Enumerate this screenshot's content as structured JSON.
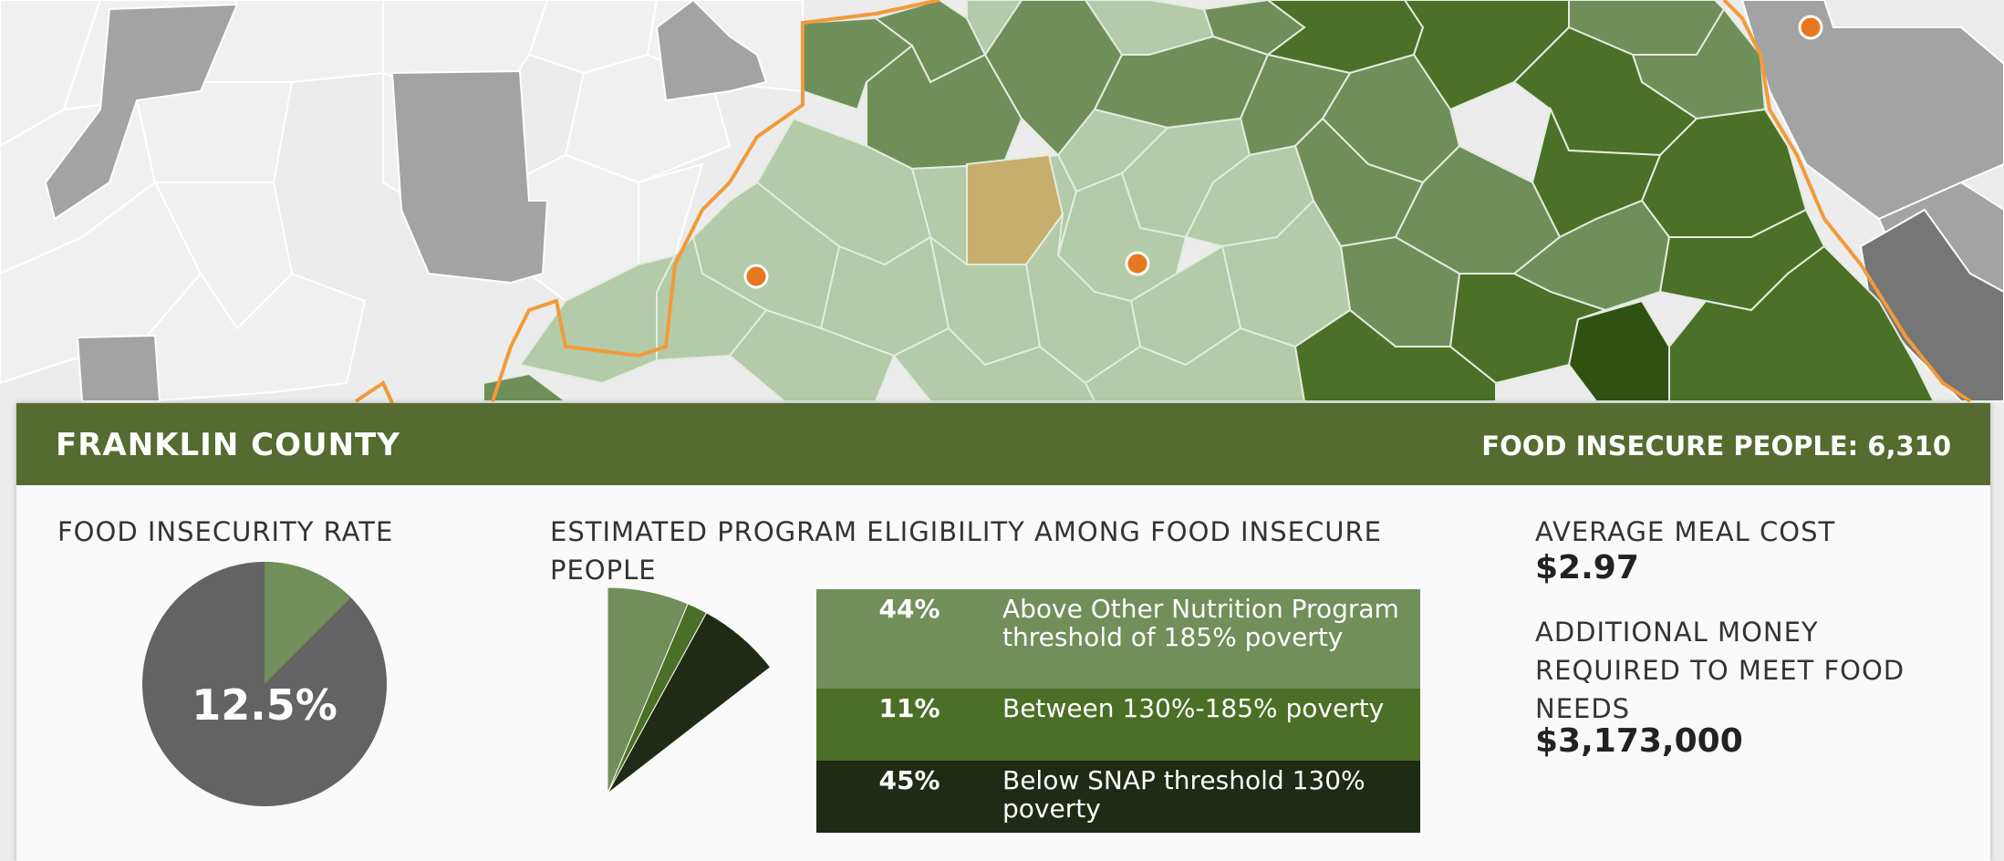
{
  "county": {
    "name": "FRANKLIN COUNTY",
    "food_insecure_label": "FOOD INSECURE PEOPLE:",
    "food_insecure_value": "6,310"
  },
  "rate": {
    "label": "FOOD INSECURITY RATE",
    "value_text": "12.5%",
    "value": 0.125,
    "color_insecure": "#708f5a",
    "color_rest": "#636363"
  },
  "eligibility": {
    "label": "ESTIMATED PROGRAM ELIGIBILITY AMONG FOOD INSECURE PEOPLE",
    "rows": [
      {
        "pct": "44%",
        "value": 44,
        "text": "Above Other Nutrition Program threshold of 185% poverty",
        "color": "#708f5a"
      },
      {
        "pct": "11%",
        "value": 11,
        "text": "Between 130%-185% poverty",
        "color": "#4a6f26"
      },
      {
        "pct": "45%",
        "value": 45,
        "text": "Below SNAP threshold 130% poverty",
        "color": "#1f2b14"
      }
    ]
  },
  "meal": {
    "label": "AVERAGE MEAL COST",
    "value": "$2.97"
  },
  "additional": {
    "label": "ADDITIONAL MONEY REQUIRED TO MEET FOOD NEEDS",
    "value": "$3,173,000"
  },
  "map": {
    "colors": {
      "background": "#e8e8e8",
      "outside_light": "#f0f0f0",
      "outside_gray": "#a3a3a3",
      "outside_dark": "#767676",
      "state_border": "#f29a3a",
      "green_light": "#b3cba8",
      "green_mid": "#6f8f5a",
      "green_dark": "#4a7127",
      "green_darkest": "#2f5213",
      "selected": "#c7ae6c",
      "marker": "#e8781f"
    }
  }
}
